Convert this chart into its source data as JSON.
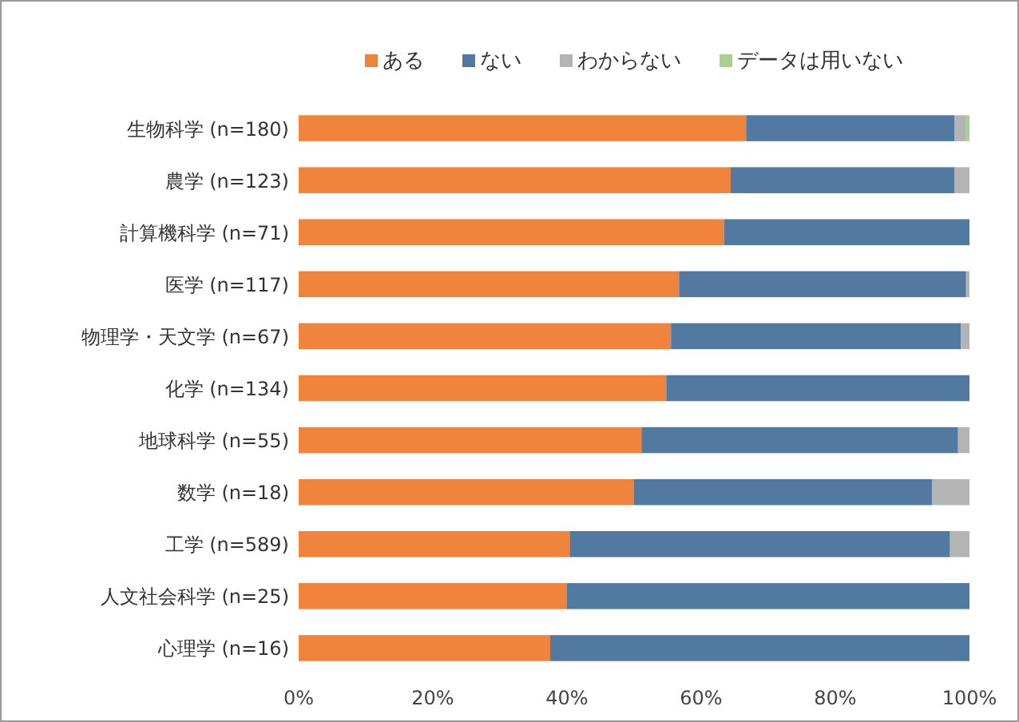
{
  "chart_data": {
    "type": "bar",
    "orientation": "horizontal",
    "stacked": true,
    "categories": [
      "生物科学 (n=180)",
      "農学 (n=123)",
      "計算機科学 (n=71)",
      "医学 (n=117)",
      "物理学・天文学 (n=67)",
      "化学 (n=134)",
      "地球科学 (n=55)",
      "数学 (n=18)",
      "工学 (n=589)",
      "人文社会科学 (n=25)",
      "心理学 (n=16)"
    ],
    "series": [
      {
        "name": "ある",
        "color": "#f0843c",
        "values": [
          66.7,
          64.4,
          63.4,
          56.7,
          55.5,
          54.8,
          51.1,
          50.0,
          40.4,
          40.0,
          37.5
        ]
      },
      {
        "name": "ない",
        "color": "#52799f",
        "values": [
          31.1,
          33.4,
          36.6,
          42.8,
          43.2,
          45.2,
          47.2,
          44.4,
          56.7,
          60.0,
          62.5
        ]
      },
      {
        "name": "わからない",
        "color": "#b4b4b4",
        "values": [
          1.7,
          2.2,
          0,
          0.5,
          1.3,
          0,
          1.7,
          5.6,
          2.9,
          0,
          0
        ]
      },
      {
        "name": "データは用いない",
        "color": "#a9d18e",
        "values": [
          0.5,
          0,
          0,
          0,
          0,
          0,
          0,
          0,
          0,
          0,
          0
        ]
      }
    ],
    "xlim": [
      0,
      100
    ],
    "xticks": [
      {
        "value": 0,
        "label": "0%"
      },
      {
        "value": 20,
        "label": "20%"
      },
      {
        "value": 40,
        "label": "40%"
      },
      {
        "value": 60,
        "label": "60%"
      },
      {
        "value": 80,
        "label": "80%"
      },
      {
        "value": 100,
        "label": "100%"
      }
    ],
    "legend": "top"
  }
}
